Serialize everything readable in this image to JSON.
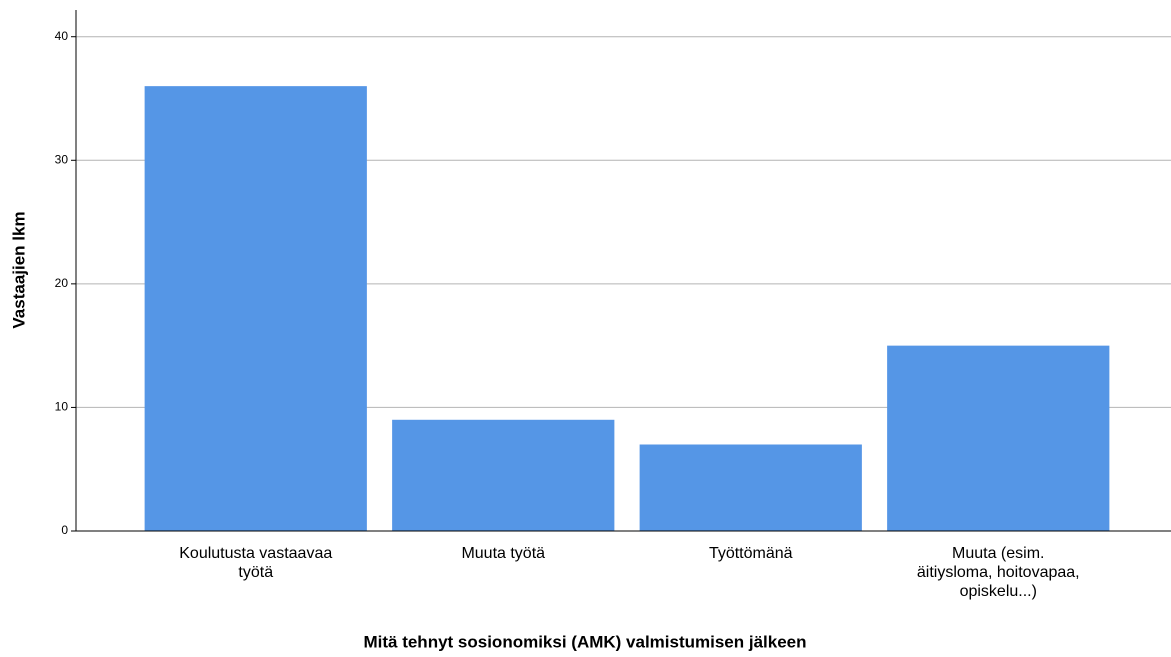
{
  "chart_data": {
    "type": "bar",
    "x_label": "Mitä tehnyt sosionomiksi (AMK) valmistumisen jälkeen",
    "y_label": "Vastaajien lkm",
    "categories": [
      "Koulutusta vastaavaa\ntyötä",
      "Muuta työtä",
      "Työttömänä",
      "Muuta (esim.\näitiysloma, hoitovapaa,\nopiskelu...)"
    ],
    "values": [
      36,
      9,
      7,
      15
    ],
    "color": "#5596e6",
    "ylim": [
      0,
      42
    ],
    "yticks": [
      0,
      10,
      20,
      30,
      40
    ],
    "grid": true
  }
}
